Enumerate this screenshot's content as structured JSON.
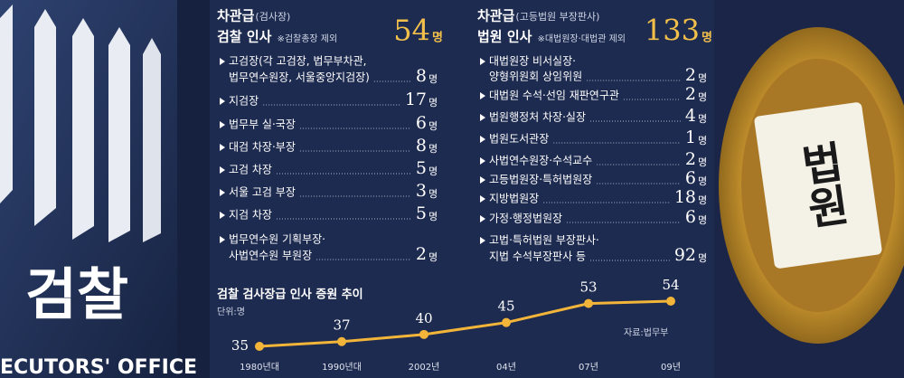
{
  "prosecution": {
    "rank": "차관급",
    "rank_note": "(검사장)",
    "heading": "검찰 인사",
    "note": "※검찰총장 제외",
    "total": 54,
    "unit": "명",
    "items": [
      {
        "lines": [
          "고검장(각 고검장, 법무부차관,",
          "법무연수원장, 서울중앙지검장)"
        ],
        "value": 8
      },
      {
        "lines": [
          "지검장"
        ],
        "value": 17
      },
      {
        "lines": [
          "법무부 실·국장"
        ],
        "value": 6
      },
      {
        "lines": [
          "대검 차장·부장"
        ],
        "value": 8
      },
      {
        "lines": [
          "고검 차장"
        ],
        "value": 5
      },
      {
        "lines": [
          "서울 고검 부장"
        ],
        "value": 3
      },
      {
        "lines": [
          "지검 차장"
        ],
        "value": 5
      },
      {
        "lines": [
          "법무연수원 기획부장·",
          "사법연수원 부원장"
        ],
        "value": 2
      }
    ]
  },
  "court": {
    "rank": "차관급",
    "rank_note": "(고등법원 부장판사)",
    "heading": "법원 인사",
    "note": "※대법원장·대법관 제외",
    "total": 133,
    "unit": "명",
    "items": [
      {
        "lines": [
          "대법원장 비서실장·",
          "양형위원회 상임위원"
        ],
        "value": 2
      },
      {
        "lines": [
          "대법원 수석·선임 재판연구관"
        ],
        "value": 2
      },
      {
        "lines": [
          "법원행정처 차장·실장"
        ],
        "value": 4
      },
      {
        "lines": [
          "법원도서관장"
        ],
        "value": 1
      },
      {
        "lines": [
          "사법연수원장·수석교수"
        ],
        "value": 2
      },
      {
        "lines": [
          "고등법원장·특허법원장"
        ],
        "value": 6
      },
      {
        "lines": [
          "지방법원장"
        ],
        "value": 18
      },
      {
        "lines": [
          "가정·행정법원장"
        ],
        "value": 6
      },
      {
        "lines": [
          "고법·특허법원 부장판사·",
          "지법 수석부장판사 등"
        ],
        "value": 92
      }
    ]
  },
  "photo_texts": {
    "left_sign": "검찰",
    "left_caption": "ECUTORS' OFFICE",
    "right_emblem": "법원"
  },
  "chart_data": {
    "type": "line",
    "title": "검찰 검사장급 인사 증원 추이",
    "unit_note": "단위:명",
    "source": "자료:법무부",
    "categories": [
      "1980년대",
      "1990년대",
      "2002년",
      "04년",
      "07년",
      "09년"
    ],
    "values": [
      35,
      37,
      40,
      45,
      53,
      54
    ],
    "color": "#f2b53a"
  }
}
